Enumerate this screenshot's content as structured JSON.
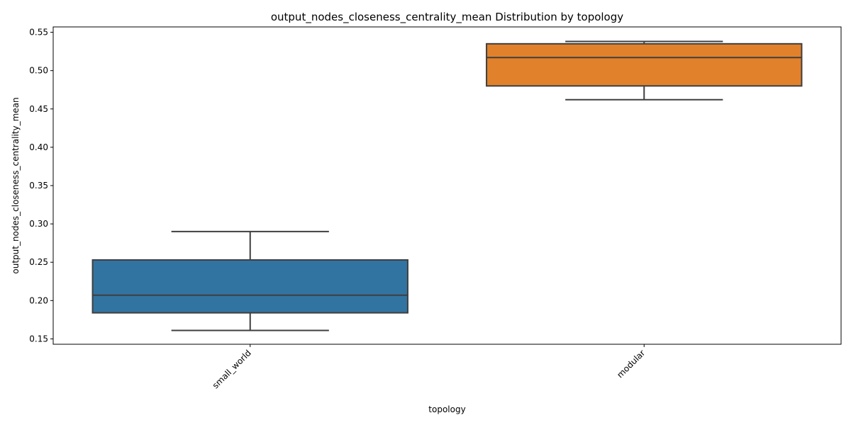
{
  "chart_data": {
    "type": "box",
    "title": "output_nodes_closeness_centrality_mean Distribution by topology",
    "xlabel": "topology",
    "ylabel": "output_nodes_closeness_centrality_mean",
    "categories": [
      "small_world",
      "modular"
    ],
    "boxes": [
      {
        "category": "small_world",
        "whisker_low": 0.161,
        "q1": 0.184,
        "median": 0.207,
        "q3": 0.253,
        "whisker_high": 0.29,
        "color": "#3274a1"
      },
      {
        "category": "modular",
        "whisker_low": 0.462,
        "q1": 0.48,
        "median": 0.517,
        "q3": 0.535,
        "whisker_high": 0.538,
        "color": "#e1812c"
      }
    ],
    "ylim": [
      0.143,
      0.557
    ],
    "yticks": [
      0.15,
      0.2,
      0.25,
      0.3,
      0.35,
      0.4,
      0.45,
      0.5,
      0.55
    ],
    "ytick_labels": [
      "0.15",
      "0.20",
      "0.25",
      "0.30",
      "0.35",
      "0.40",
      "0.45",
      "0.50",
      "0.55"
    ],
    "grid": false,
    "legend": "none",
    "line_color": "#3f3f3f"
  }
}
